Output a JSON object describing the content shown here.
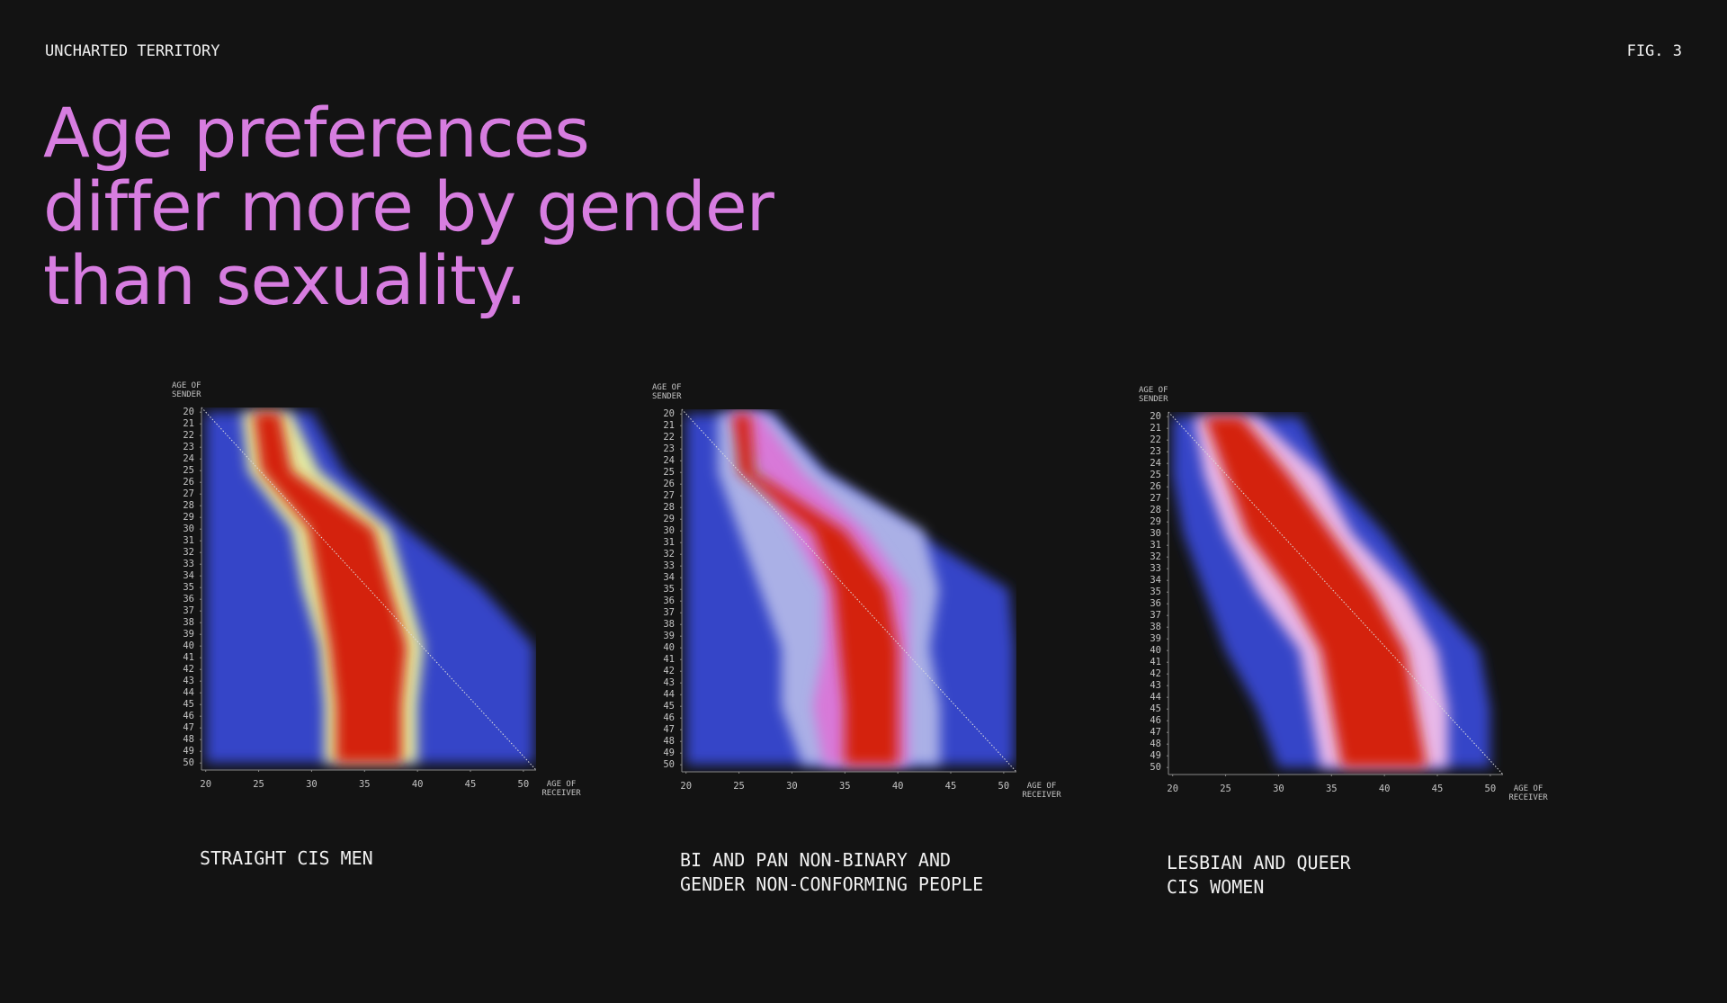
{
  "header": {
    "left": "UNCHARTED TERRITORY",
    "right": "FIG. 3",
    "title": [
      "Age preferences",
      "differ more by gender",
      "than sexuality."
    ]
  },
  "chart_data": [
    {
      "type": "heatmap",
      "caption": [
        "STRAIGHT CIS MEN"
      ],
      "x_label": [
        "AGE OF",
        "RECEIVER"
      ],
      "y_label": [
        "AGE OF",
        "SENDER"
      ],
      "xlim": [
        19.6,
        51.2
      ],
      "ylim": [
        19.6,
        50.6
      ],
      "xticks": [
        20,
        25,
        30,
        35,
        40,
        45,
        50
      ],
      "yticks": [
        20,
        21,
        22,
        23,
        24,
        25,
        26,
        27,
        28,
        29,
        30,
        31,
        32,
        33,
        34,
        35,
        36,
        37,
        38,
        39,
        40,
        41,
        42,
        43,
        44,
        45,
        46,
        47,
        48,
        49,
        50
      ],
      "y": [
        20,
        25,
        30,
        35,
        40,
        45,
        50
      ],
      "bands": [
        {
          "color": "#3644c8",
          "low": [
            20,
            20,
            20,
            20,
            20,
            20,
            20
          ],
          "high": [
            30,
            33,
            39,
            46,
            51,
            51,
            51
          ]
        },
        {
          "color": "#e4eca2",
          "low": [
            23.4,
            24,
            28.1,
            29.1,
            30.7,
            31.2,
            31.2
          ],
          "high": [
            28.1,
            30.7,
            37.4,
            39,
            40.6,
            40,
            40
          ]
        },
        {
          "color": "#d42410",
          "low": [
            24.5,
            25.2,
            29.7,
            30.7,
            31.7,
            32.3,
            32.3
          ],
          "high": [
            27,
            28.1,
            35.9,
            37.4,
            39,
            38.5,
            38.5
          ]
        }
      ]
    },
    {
      "type": "heatmap",
      "caption": [
        "BI AND PAN NON-BINARY AND",
        "GENDER NON-CONFORMING PEOPLE"
      ],
      "x_label": [
        "AGE OF",
        "RECEIVER"
      ],
      "y_label": [
        "AGE OF",
        "SENDER"
      ],
      "xlim": [
        19.6,
        51.2
      ],
      "ylim": [
        19.6,
        50.6
      ],
      "xticks": [
        20,
        25,
        30,
        35,
        40,
        45,
        50
      ],
      "yticks": [
        20,
        21,
        22,
        23,
        24,
        25,
        26,
        27,
        28,
        29,
        30,
        31,
        32,
        33,
        34,
        35,
        36,
        37,
        38,
        39,
        40,
        41,
        42,
        43,
        44,
        45,
        46,
        47,
        48,
        49,
        50
      ],
      "y": [
        20,
        25,
        30,
        35,
        40,
        45,
        50
      ],
      "bands": [
        {
          "color": "#3644c8",
          "low": [
            20,
            20,
            20,
            20,
            20,
            20,
            20
          ],
          "high": [
            28,
            33,
            41.5,
            50.5,
            51,
            51,
            51
          ]
        },
        {
          "color": "#aab0e6",
          "low": [
            23,
            23,
            25,
            27,
            29,
            29,
            31
          ],
          "high": [
            28,
            33,
            42.4,
            43.9,
            43,
            44,
            44
          ]
        },
        {
          "color": "#d878d8",
          "low": [
            24,
            27,
            30,
            33,
            33,
            32,
            33
          ],
          "high": [
            27,
            31,
            37,
            41,
            41,
            41,
            41
          ]
        },
        {
          "color": "#d42410",
          "low": [
            24.5,
            25,
            32,
            34,
            34.5,
            35,
            35
          ],
          "high": [
            26,
            26.5,
            35,
            39,
            40,
            40,
            40
          ]
        }
      ]
    },
    {
      "type": "heatmap",
      "caption": [
        "LESBIAN AND QUEER",
        "CIS WOMEN"
      ],
      "x_label": [
        "AGE OF",
        "RECEIVER"
      ],
      "y_label": [
        "AGE OF",
        "SENDER"
      ],
      "xlim": [
        19.6,
        51.2
      ],
      "ylim": [
        19.6,
        50.6
      ],
      "xticks": [
        20,
        25,
        30,
        35,
        40,
        45,
        50
      ],
      "yticks": [
        20,
        21,
        22,
        23,
        24,
        25,
        26,
        27,
        28,
        29,
        30,
        31,
        32,
        33,
        34,
        35,
        36,
        37,
        38,
        39,
        40,
        41,
        42,
        43,
        44,
        45,
        46,
        47,
        48,
        49,
        50
      ],
      "y": [
        20,
        25,
        30,
        35,
        40,
        45,
        50
      ],
      "bands": [
        {
          "color": "#3644c8",
          "low": [
            20,
            20,
            21,
            23,
            25,
            28,
            30
          ],
          "high": [
            32,
            35,
            40,
            44,
            49,
            50,
            50
          ]
        },
        {
          "color": "#e8b8e8",
          "low": [
            22,
            23,
            25,
            28,
            32,
            33,
            34
          ],
          "high": [
            28,
            34,
            37,
            42,
            45,
            46,
            46
          ]
        },
        {
          "color": "#d42410",
          "low": [
            23,
            25,
            27,
            31,
            34,
            35,
            36
          ],
          "high": [
            26.5,
            31,
            35,
            39,
            42,
            43,
            44
          ]
        }
      ]
    }
  ]
}
